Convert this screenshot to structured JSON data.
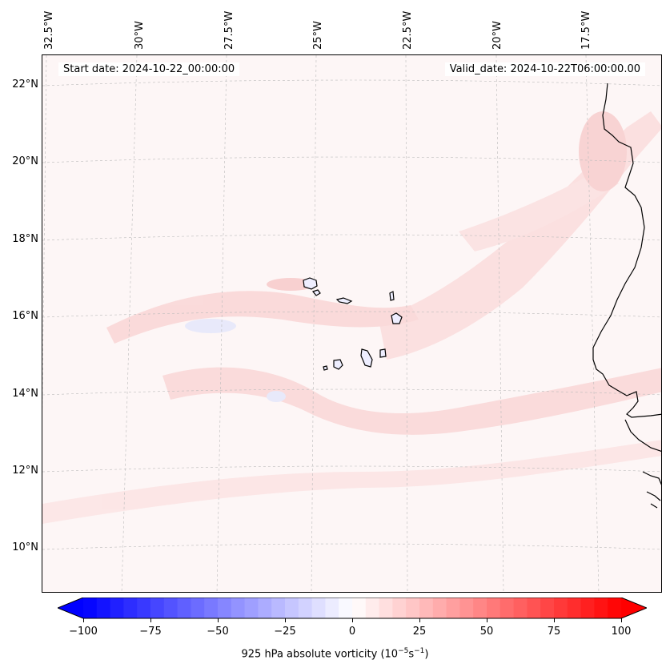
{
  "map": {
    "lon_labels": [
      "32.5°W",
      "30°W",
      "27.5°W",
      "25°W",
      "22.5°W",
      "20°W",
      "17.5°W"
    ],
    "lat_labels": [
      "22°N",
      "20°N",
      "18°N",
      "16°N",
      "14°N",
      "12°N",
      "10°N"
    ],
    "start_date": "Start date: 2024-10-22_00:00:00",
    "valid_date": "Valid_date: 2024-10-22T06:00:00.00"
  },
  "colorbar": {
    "ticks": [
      "−100",
      "−75",
      "−50",
      "−25",
      "0",
      "25",
      "50",
      "75",
      "100"
    ],
    "label": "925 hPa absolute vorticity (10",
    "label_exp1": "−5",
    "label_mid": "s",
    "label_exp2": "−1",
    "label_end": ")",
    "colors": {
      "min": "#0000ff",
      "mid": "#ffffff",
      "max": "#ff0000"
    }
  }
}
